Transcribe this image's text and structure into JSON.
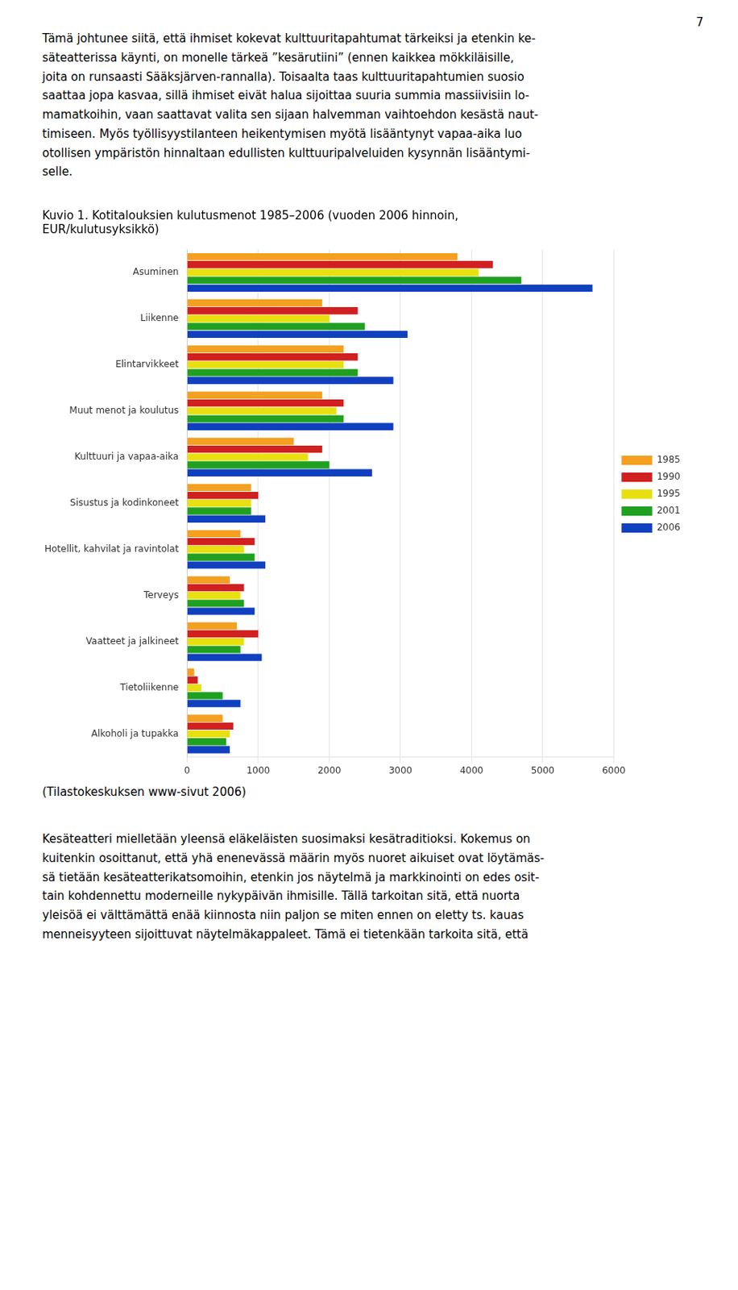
{
  "page_number": "7",
  "text_top": "Tämä johtunee siitä, että ihmiset kokevat kulttuuritapahtumat tärkeiksi ja etenkin ke-\nsäteatterissa käynti, on monelle tärkeä ”kesärutiini” (ennen kaikkea mökkiläisille,\njoita on runsaasti Sääksjärven-rannalla). Toisaalta taas kulttuuritapahtumien suosio\nsaattaa jopa kasvaa, sillä ihmiset eivät halua sijoittaa suuria summia massiivisiin lo-\nmamatkoihin, vaan saattavat valita sen sijaan halvemman vaihtoehdon kesästä naut-\ntimiseen. Myös työllisyystilanteen heikentymisen myötä lisääntynyt vapaa-aika luo\notollisen ympäristön hinnaltaan edullisten kulttuuripalveluiden kysynnän lisääntymi-\nselle.",
  "source_note": "(Tilastokeskuksen www-sivut 2006)",
  "text_bottom": "Kesäteatteri mielletään yleensä eläkeläisten suosimaksi kesätraditioksi. Kokemus on\nkuitenkin osoittanut, että yhä enenevässä määrin myös nuoret aikuiset ovat löytämäs-\nsä tietään kesäteatterikatsomoihin, etenkin jos näytelmä ja markkinointi on edes osit-\ntain kohdennettu moderneille nykypäivän ihmisille. Tällä tarkoitan sitä, että nuorta\nyleisöä ei välttämättä enää kiinnosta niin paljon se miten ennen on eletty ts. kauas\nmenneisyyteen sijoittuvat näytelmäkappaleet. Tämä ei tietenkään tarkoita sitä, että",
  "chart_data": {
    "type": "bar",
    "orientation": "horizontal",
    "title": "Kuvio 1. Kotitalouksien kulutusmenot 1985–2006 (vuoden 2006 hinnoin,\nEUR/kulutusyksikkö)",
    "categories": [
      "Asuminen",
      "Liikenne",
      "Elintarvikkeet",
      "Muut menot ja koulutus",
      "Kulttuuri ja vapaa-aika",
      "Sisustus ja kodinkoneet",
      "Hotellit, kahvilat ja ravintolat",
      "Terveys",
      "Vaatteet ja jalkineet",
      "Tietoliikenne",
      "Alkoholi ja tupakka"
    ],
    "series": [
      {
        "name": "1985",
        "color": "#F4A020",
        "values": [
          3800,
          1900,
          2200,
          1900,
          1500,
          900,
          750,
          600,
          700,
          100,
          500
        ]
      },
      {
        "name": "1990",
        "color": "#D02020",
        "values": [
          4300,
          2400,
          2400,
          2200,
          1900,
          1000,
          950,
          800,
          1000,
          150,
          650
        ]
      },
      {
        "name": "1995",
        "color": "#E8E010",
        "values": [
          4100,
          2000,
          2200,
          2100,
          1700,
          900,
          800,
          750,
          800,
          200,
          600
        ]
      },
      {
        "name": "2001",
        "color": "#20A020",
        "values": [
          4700,
          2500,
          2400,
          2200,
          2000,
          900,
          950,
          800,
          750,
          500,
          550
        ]
      },
      {
        "name": "2006",
        "color": "#1040C0",
        "values": [
          5700,
          3100,
          2900,
          2900,
          2600,
          1100,
          1100,
          950,
          1050,
          750,
          600
        ]
      }
    ],
    "xlim": [
      0,
      6000
    ],
    "xticks": [
      0,
      1000,
      2000,
      3000,
      4000,
      5000,
      6000
    ],
    "grid": true,
    "legend": "right"
  }
}
